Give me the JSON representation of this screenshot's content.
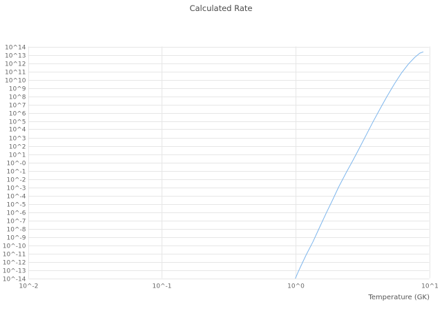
{
  "chart_data": {
    "type": "line",
    "title": "Calculated Rate",
    "xlabel": "Temperature (GK)",
    "ylabel": "",
    "x_scale": "log",
    "y_scale": "log",
    "xlim": [
      0.01,
      10
    ],
    "ylim_log10": [
      -14,
      14
    ],
    "grid": true,
    "legend": "none",
    "line_color": "#7cb5ec",
    "grid_color": "#e6e6e6",
    "x_tick_labels": [
      "10^-2",
      "10^-1",
      "10^0",
      "10^1"
    ],
    "x_tick_log10": [
      -2,
      -1,
      0,
      1
    ],
    "y_tick_labels": [
      "10^14",
      "10^13",
      "10^12",
      "10^11",
      "10^10",
      "10^9",
      "10^8",
      "10^7",
      "10^6",
      "10^5",
      "10^4",
      "10^3",
      "10^2",
      "10^1",
      "10^-0",
      "10^-1",
      "10^-2",
      "10^-3",
      "10^-4",
      "10^-5",
      "10^-6",
      "10^-7",
      "10^-8",
      "10^-9",
      "10^-10",
      "10^-11",
      "10^-12",
      "10^-13",
      "10^-14"
    ],
    "y_tick_log10": [
      14,
      13,
      12,
      11,
      10,
      9,
      8,
      7,
      6,
      5,
      4,
      3,
      2,
      1,
      0,
      -1,
      -2,
      -3,
      -4,
      -5,
      -6,
      -7,
      -8,
      -9,
      -10,
      -11,
      -12,
      -13,
      -14
    ],
    "series": [
      {
        "name": "Calculated Rate",
        "color": "#7cb5ec",
        "x": [
          1.0,
          1.05,
          1.1,
          1.2,
          1.35,
          1.5,
          1.7,
          1.9,
          2.1,
          2.4,
          2.7,
          3.0,
          3.4,
          3.8,
          4.3,
          4.8,
          5.5,
          6.2,
          7.0,
          7.8,
          8.5,
          9.0
        ],
        "log10_y": [
          -14,
          -13.2,
          -12.5,
          -11.2,
          -9.6,
          -8.0,
          -6.1,
          -4.5,
          -3.0,
          -1.2,
          0.3,
          1.7,
          3.4,
          4.9,
          6.5,
          7.9,
          9.5,
          10.8,
          11.9,
          12.7,
          13.2,
          13.35
        ]
      }
    ]
  }
}
